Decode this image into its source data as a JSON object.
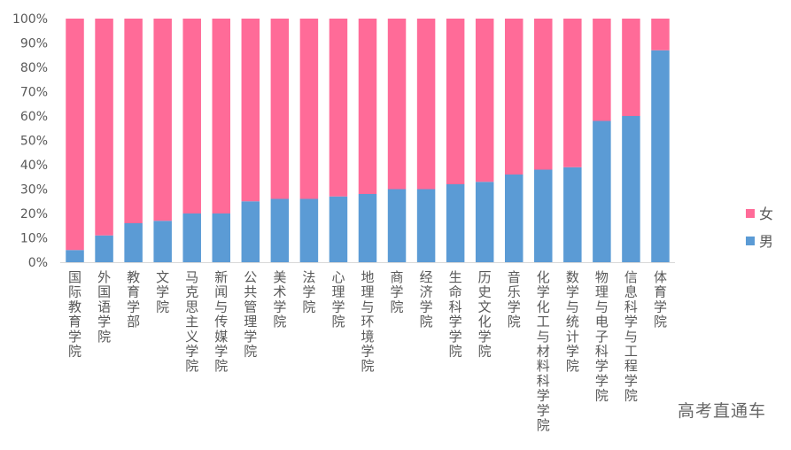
{
  "chart_data": {
    "type": "bar",
    "stacked": true,
    "percent": true,
    "categories": [
      "国际教育学院",
      "外国语学院",
      "教育学部",
      "文学院",
      "马克思主义学院",
      "新闻与传媒学院",
      "公共管理学院",
      "美术学院",
      "法学院",
      "心理学院",
      "地理与环境学院",
      "商学院",
      "经济学院",
      "生命科学学院",
      "历史文化学院",
      "音乐学院",
      "化学化工与材料科学学院",
      "数学与统计学院",
      "物理与电子科学学院",
      "信息科学与工程学院",
      "体育学院"
    ],
    "series": [
      {
        "name": "男",
        "color": "#5b9bd5",
        "values": [
          5,
          11,
          16,
          17,
          20,
          20,
          25,
          26,
          26,
          27,
          28,
          30,
          30,
          32,
          33,
          36,
          38,
          39,
          58,
          60,
          87
        ]
      },
      {
        "name": "女",
        "color": "#ff6b98",
        "values": [
          95,
          89,
          84,
          83,
          80,
          80,
          75,
          74,
          74,
          73,
          72,
          70,
          70,
          68,
          67,
          64,
          62,
          61,
          42,
          40,
          13
        ]
      }
    ],
    "ylim": [
      0,
      100
    ],
    "yticks": [
      "0%",
      "10%",
      "20%",
      "30%",
      "40%",
      "50%",
      "60%",
      "70%",
      "80%",
      "90%",
      "100%"
    ],
    "legend_position": "right",
    "legend_order": [
      "女",
      "男"
    ],
    "grid": false
  },
  "watermark": "高考直通车"
}
